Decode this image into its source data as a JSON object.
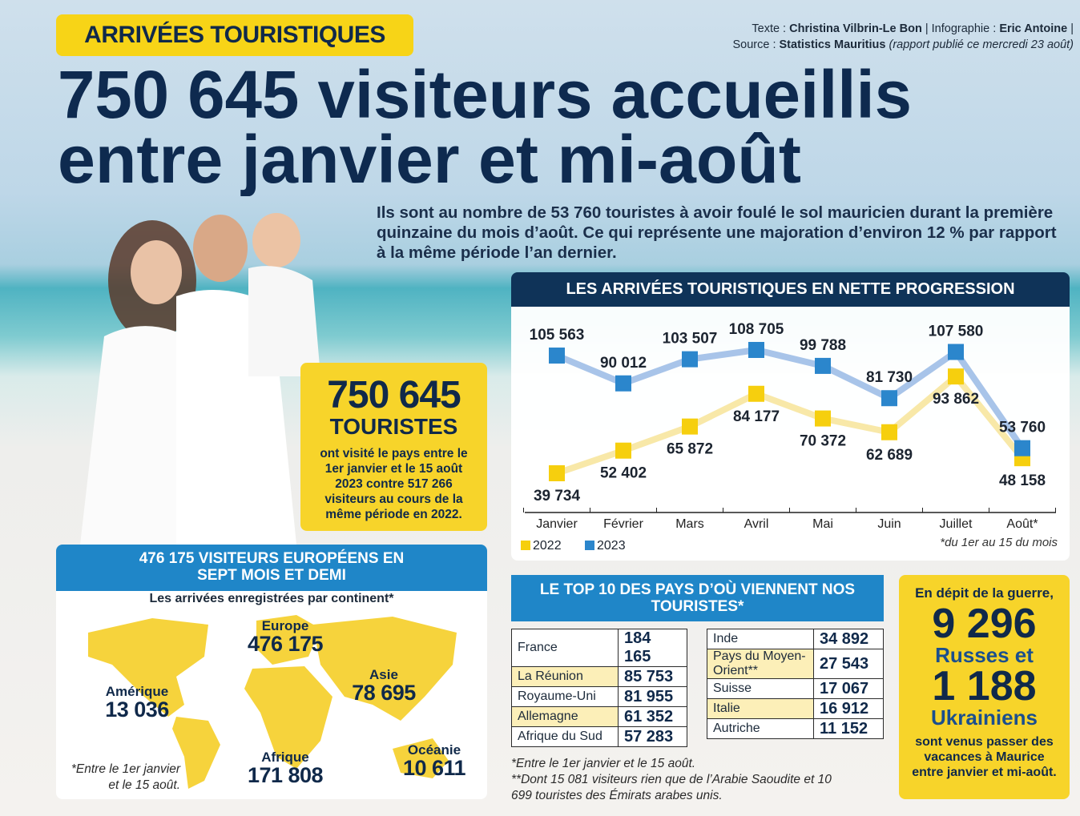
{
  "tag": "ARRIVÉES TOURISTIQUES",
  "credits": {
    "text_label": "Texte :",
    "author": "Christina Vilbrin-Le Bon",
    "graphics_label": "| Infographie :",
    "graphics": "Eric Antoine",
    "end": "|",
    "source_label": "Source :",
    "source": "Statistics Mauritius",
    "source_note": "(rapport publié ce mercredi 23 août)"
  },
  "headline": [
    "750 645 visiteurs accueillis",
    "entre janvier et mi-août"
  ],
  "intro": "Ils sont au nombre de 53 760 touristes à avoir foulé le sol mauricien durant la première quinzaine du mois d’août. Ce qui représente une majoration d’environ 12 % par rapport à la même période l’an dernier.",
  "total_box": {
    "number": "750 645",
    "unit": "TOURISTES",
    "text": "ont visité le pays entre le 1er janvier et le 15 août 2023 contre 517 266 visiteurs au cours de la même période en 2022."
  },
  "chart_data": {
    "type": "line",
    "title": "LES ARRIVÉES TOURISTIQUES EN NETTE PROGRESSION",
    "categories": [
      "Janvier",
      "Février",
      "Mars",
      "Avril",
      "Mai",
      "Juin",
      "Juillet",
      "Août*"
    ],
    "series": [
      {
        "name": "2022",
        "color": "#f6cf0e",
        "line_color": "#f8e8a8",
        "values": [
          39734,
          52402,
          65872,
          84177,
          70372,
          62689,
          93862,
          48158
        ],
        "value_labels": [
          "39 734",
          "52 402",
          "65 872",
          "84 177",
          "70 372",
          "62 689",
          "93 862",
          "48 158"
        ]
      },
      {
        "name": "2023",
        "color": "#2b86cc",
        "line_color": "#a8c4e9",
        "values": [
          105563,
          90012,
          103507,
          108705,
          99788,
          81730,
          107580,
          53760
        ],
        "value_labels": [
          "105 563",
          "90 012",
          "103 507",
          "108 705",
          "99 788",
          "81 730",
          "107 580",
          "53 760"
        ]
      }
    ],
    "note": "*du 1er au 15 du mois"
  },
  "continents": {
    "title": "476 175 VISITEURS EUROPÉENS EN SEPT MOIS ET DEMI",
    "subtitle": "Les arrivées enregistrées par continent*",
    "regions": [
      {
        "name": "Europe",
        "value": "476 175"
      },
      {
        "name": "Asie",
        "value": "78 695"
      },
      {
        "name": "Amérique",
        "value": "13 036"
      },
      {
        "name": "Afrique",
        "value": "171 808"
      },
      {
        "name": "Océanie",
        "value": "10 611"
      }
    ],
    "note": "*Entre le 1er janvier et le 15 août."
  },
  "top10": {
    "title": "LE TOP 10 DES PAYS D’OÙ VIENNENT NOS TOURISTES*",
    "left": [
      [
        "France",
        "184 165"
      ],
      [
        "La Réunion",
        "85 753"
      ],
      [
        "Royaume-Uni",
        "81 955"
      ],
      [
        "Allemagne",
        "61 352"
      ],
      [
        "Afrique du Sud",
        "57 283"
      ]
    ],
    "right": [
      [
        "Inde",
        "34 892"
      ],
      [
        "Pays du Moyen-Orient**",
        "27 543"
      ],
      [
        "Suisse",
        "17 067"
      ],
      [
        "Italie",
        "16 912"
      ],
      [
        "Autriche",
        "11 152"
      ]
    ],
    "notes": [
      "*Entre le 1er janvier et le 15 août.",
      "**Dont 15 081 visiteurs rien que de l’Arabie Saoudite et 10 699 touristes des Émirats arabes unis."
    ]
  },
  "war_box": {
    "intro": "En dépit de la guerre,",
    "russians": "9 296",
    "russians_label": "Russes et",
    "ukrainians": "1 188",
    "ukrainians_label": "Ukrainiens",
    "text": "sont venus passer des vacances à Maurice entre janvier et mi-août."
  }
}
